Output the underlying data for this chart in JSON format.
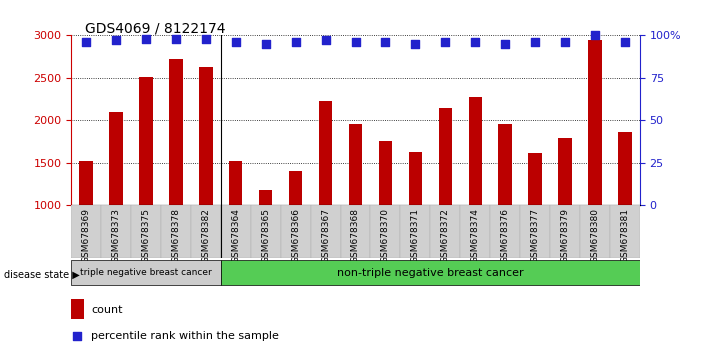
{
  "title": "GDS4069 / 8122174",
  "samples": [
    "GSM678369",
    "GSM678373",
    "GSM678375",
    "GSM678378",
    "GSM678382",
    "GSM678364",
    "GSM678365",
    "GSM678366",
    "GSM678367",
    "GSM678368",
    "GSM678370",
    "GSM678371",
    "GSM678372",
    "GSM678374",
    "GSM678376",
    "GSM678377",
    "GSM678379",
    "GSM678380",
    "GSM678381"
  ],
  "counts": [
    1520,
    2100,
    2510,
    2720,
    2630,
    1520,
    1185,
    1400,
    2230,
    1960,
    1760,
    1630,
    2150,
    2270,
    1960,
    1620,
    1790,
    2950,
    1860
  ],
  "percentile_ranks": [
    96,
    97,
    98,
    98,
    98,
    96,
    95,
    96,
    97,
    96,
    96,
    95,
    96,
    96,
    95,
    96,
    96,
    100,
    96
  ],
  "bar_color": "#BB0000",
  "dot_color": "#2222CC",
  "group1_count": 5,
  "group1_label": "triple negative breast cancer",
  "group2_label": "non-triple negative breast cancer",
  "group1_color": "#CCCCCC",
  "group2_color": "#55CC55",
  "ylim_left": [
    1000,
    3000
  ],
  "ylim_right": [
    0,
    100
  ],
  "yticks_left": [
    1000,
    1500,
    2000,
    2500,
    3000
  ],
  "yticks_right": [
    0,
    25,
    50,
    75,
    100
  ],
  "ylabel_left_color": "#CC0000",
  "ylabel_right_color": "#2222CC",
  "legend_count_label": "count",
  "legend_pct_label": "percentile rank within the sample",
  "disease_state_label": "disease state",
  "background_color": "#FFFFFF",
  "dot_size": 28,
  "bar_width": 0.45
}
